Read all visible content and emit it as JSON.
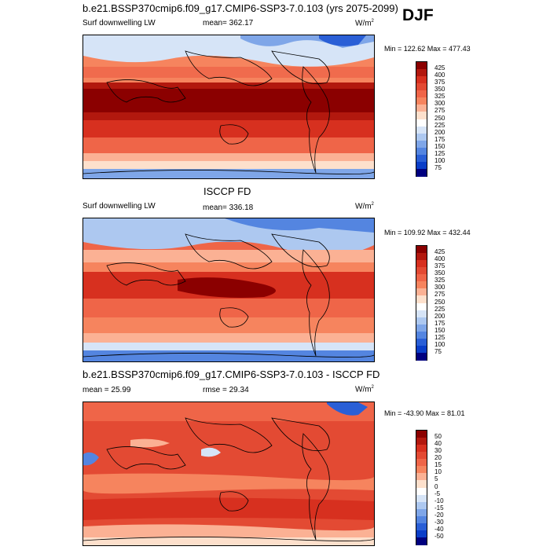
{
  "season": "DJF",
  "panels": [
    {
      "title": "b.e21.BSSP370cmip6.f09_g17.CMIP6-SSP3-7.0.103 (yrs 2075-2099)",
      "left_label": "Surf downwelling LW",
      "center_label": "mean= 362.17",
      "units": "W/m",
      "units_sup": "2",
      "minmax": "Min = 122.62 Max = 477.43",
      "colorbar": {
        "labels": [
          "425",
          "400",
          "375",
          "350",
          "325",
          "300",
          "275",
          "250",
          "225",
          "200",
          "175",
          "150",
          "125",
          "100",
          "75"
        ],
        "colors": [
          "#8b0000",
          "#b2180e",
          "#d7301f",
          "#e34a33",
          "#ef6548",
          "#f6845e",
          "#fbb194",
          "#fde0cc",
          "#ffffff",
          "#d6e4f7",
          "#adc8f0",
          "#7fa6e8",
          "#5485e0",
          "#2a5fd6",
          "#0a3ec8",
          "#00007f"
        ]
      }
    },
    {
      "title": "ISCCP FD",
      "left_label": "Surf downwelling LW",
      "center_label": "mean= 336.18",
      "units": "W/m",
      "units_sup": "2",
      "minmax": "Min = 109.92 Max = 432.44",
      "colorbar": {
        "labels": [
          "425",
          "400",
          "375",
          "350",
          "325",
          "300",
          "275",
          "250",
          "225",
          "200",
          "175",
          "150",
          "125",
          "100",
          "75"
        ],
        "colors": [
          "#8b0000",
          "#b2180e",
          "#d7301f",
          "#e34a33",
          "#ef6548",
          "#f6845e",
          "#fbb194",
          "#fde0cc",
          "#ffffff",
          "#d6e4f7",
          "#adc8f0",
          "#7fa6e8",
          "#5485e0",
          "#2a5fd6",
          "#0a3ec8",
          "#00007f"
        ]
      }
    },
    {
      "title": "b.e21.BSSP370cmip6.f09_g17.CMIP6-SSP3-7.0.103 - ISCCP FD",
      "left_label": "mean =  25.99",
      "center_label": "rmse =  29.34",
      "units": "W/m",
      "units_sup": "2",
      "minmax": "Min = -43.90 Max =  81.01",
      "colorbar": {
        "labels": [
          "50",
          "40",
          "30",
          "20",
          "15",
          "10",
          "5",
          "0",
          "-5",
          "-10",
          "-15",
          "-20",
          "-30",
          "-40",
          "-50"
        ],
        "colors": [
          "#8b0000",
          "#b2180e",
          "#d7301f",
          "#e34a33",
          "#ef6548",
          "#f6845e",
          "#fbb194",
          "#fde0cc",
          "#ffffff",
          "#d6e4f7",
          "#adc8f0",
          "#7fa6e8",
          "#5485e0",
          "#2a5fd6",
          "#0a3ec8",
          "#00007f"
        ]
      }
    }
  ]
}
